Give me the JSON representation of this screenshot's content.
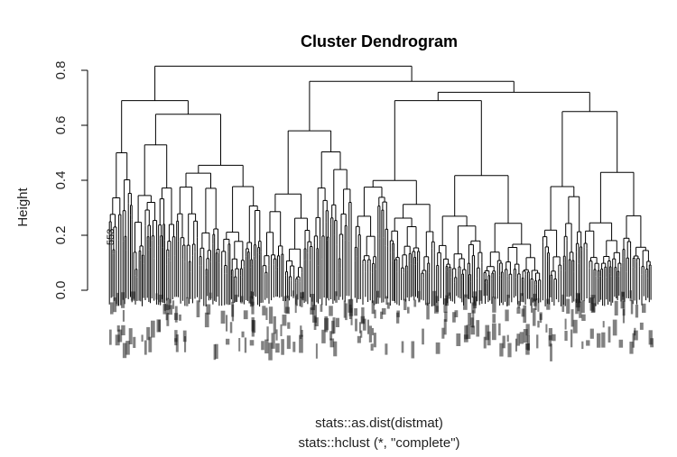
{
  "chart_data": {
    "type": "dendrogram",
    "title": "Cluster Dendrogram",
    "ylabel": "Height",
    "xlabel": "stats::as.dist(distmat)",
    "sub": "stats::hclust (*, \"complete\")",
    "ylim": [
      0,
      0.85
    ],
    "yticks": [
      0.0,
      0.2,
      0.4,
      0.6,
      0.8
    ],
    "ytick_labels": [
      "0.0",
      "0.2",
      "0.4",
      "0.6",
      "0.8"
    ],
    "root_height": 0.815,
    "major_merges": [
      {
        "height": 0.815,
        "description": "root"
      },
      {
        "height": 0.69
      },
      {
        "height": 0.76
      },
      {
        "height": 0.72
      },
      {
        "height": 0.69
      },
      {
        "height": 0.65
      },
      {
        "height": 0.64
      },
      {
        "height": 0.62
      },
      {
        "height": 0.61
      }
    ],
    "visible_leaf_labels": [
      "553"
    ],
    "grid": false,
    "legend": "none"
  }
}
